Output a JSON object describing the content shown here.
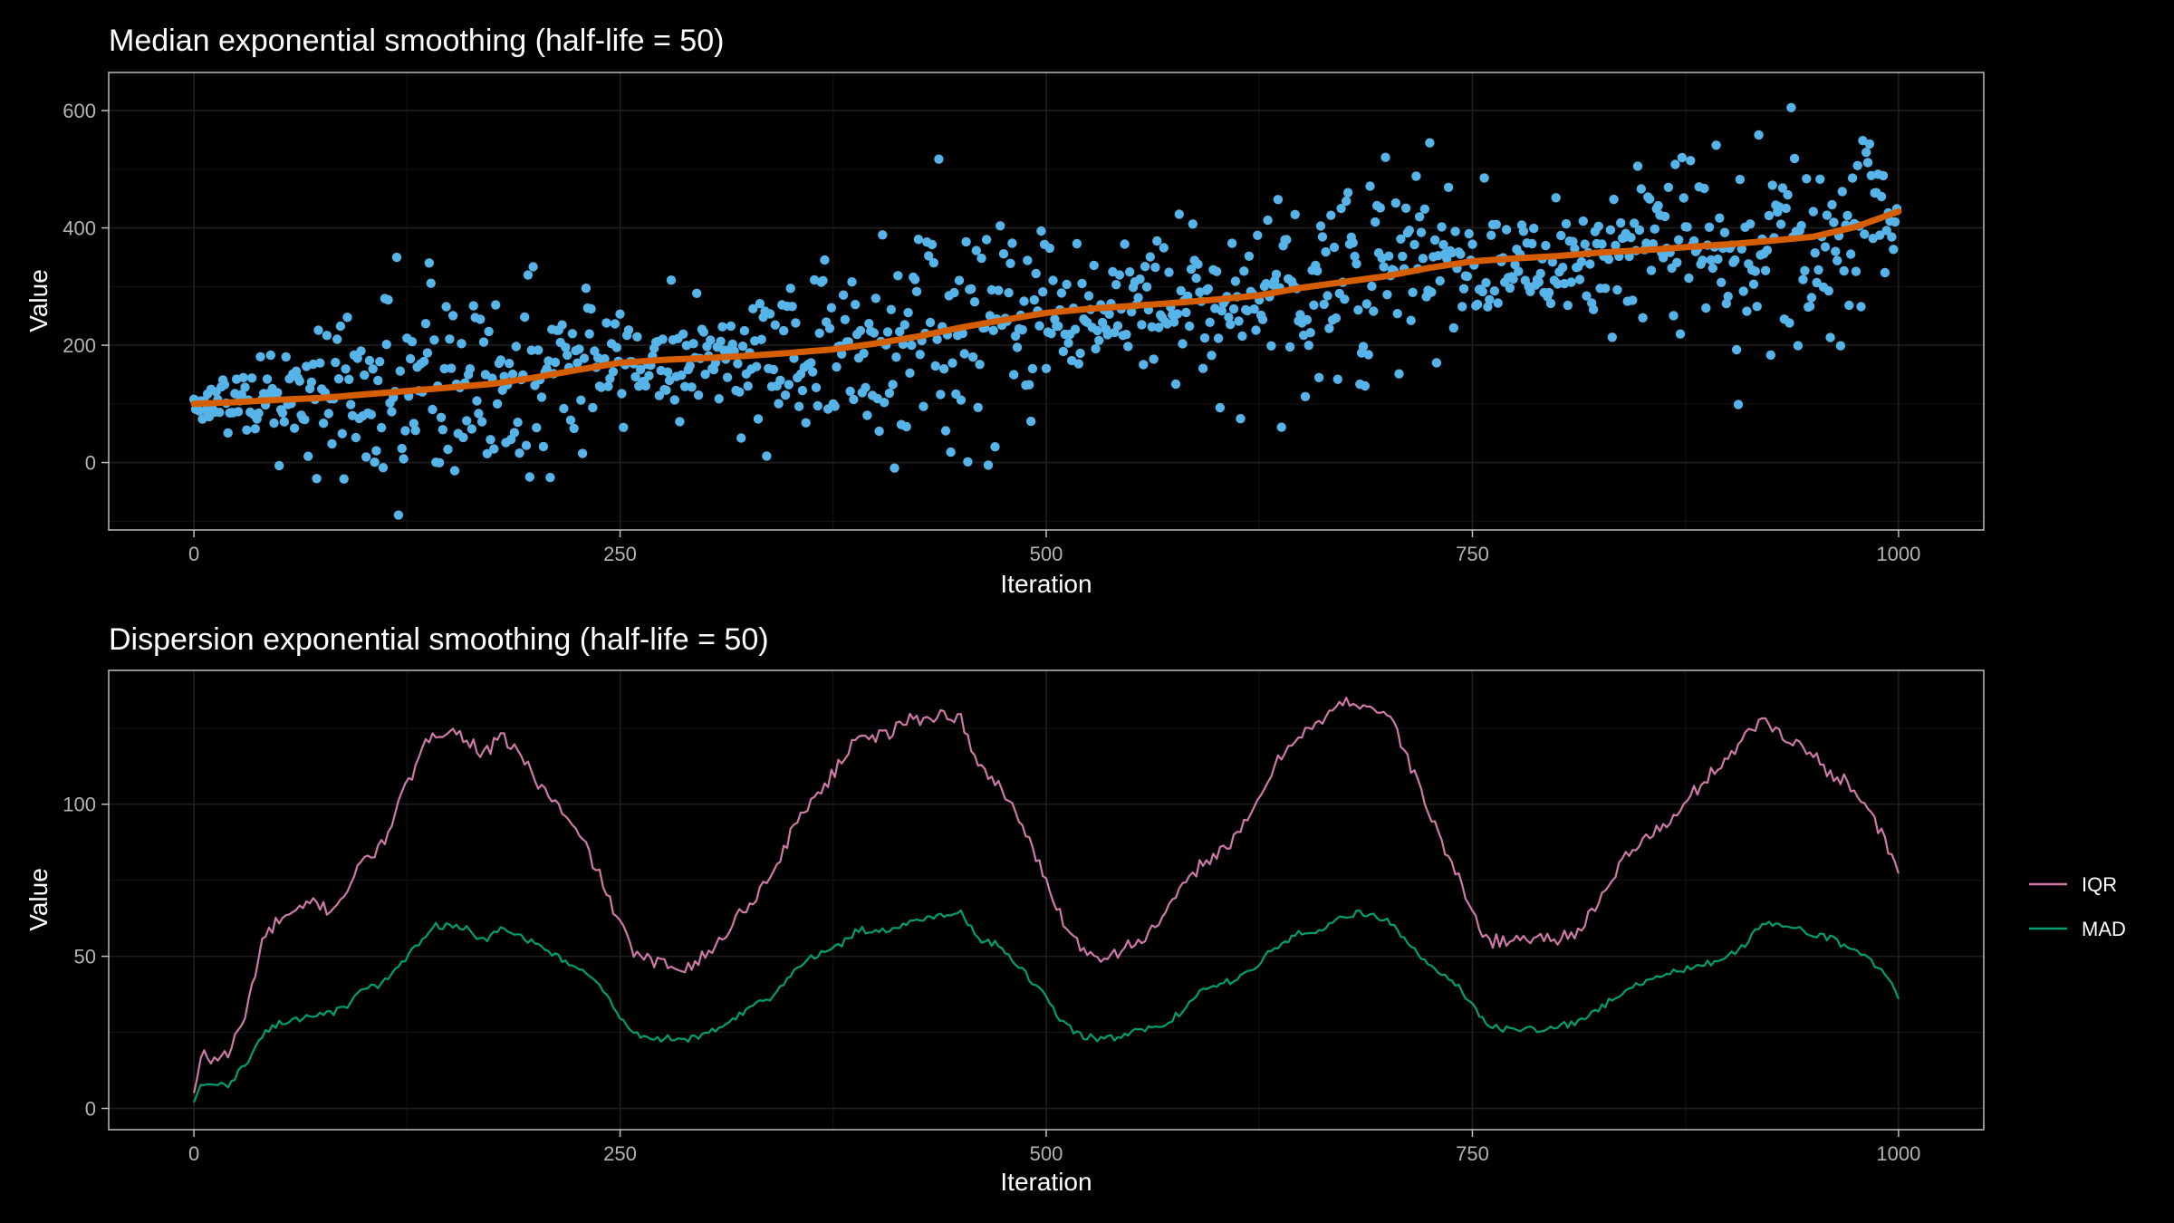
{
  "colors": {
    "background": "#000000",
    "points": "#56B4E9",
    "median_line": "#D55E00",
    "IQR": "#CC79A7",
    "MAD": "#009E73"
  },
  "chart_data": [
    {
      "type": "scatter",
      "title": "Median exponential smoothing (half-life = 50)",
      "xlabel": "Iteration",
      "ylabel": "Value",
      "xlim": [
        -50,
        1050
      ],
      "ylim": [
        -115,
        665
      ],
      "x_ticks": [
        0,
        250,
        500,
        750,
        1000
      ],
      "x_tick_labels": [
        "0",
        "250",
        "500",
        "750",
        "1000"
      ],
      "y_ticks": [
        0,
        200,
        400,
        600
      ],
      "y_tick_labels": [
        "0",
        "200",
        "400",
        "600"
      ],
      "grid": true,
      "series": [
        {
          "kind": "points",
          "color": "#56B4E9",
          "n": 1000,
          "description": "raw values, median drifting from ~100 to ~430, dispersion cycling",
          "median_path": [
            [
              0,
              100
            ],
            [
              50,
              108
            ],
            [
              100,
              118
            ],
            [
              150,
              130
            ],
            [
              200,
              148
            ],
            [
              250,
              172
            ],
            [
              300,
              180
            ],
            [
              350,
              188
            ],
            [
              400,
              205
            ],
            [
              450,
              232
            ],
            [
              500,
              255
            ],
            [
              550,
              268
            ],
            [
              600,
              278
            ],
            [
              650,
              300
            ],
            [
              700,
              322
            ],
            [
              750,
              345
            ],
            [
              800,
              352
            ],
            [
              850,
              362
            ],
            [
              900,
              372
            ],
            [
              950,
              385
            ],
            [
              1000,
              428
            ]
          ],
          "iqr_path": [
            [
              0,
              10
            ],
            [
              40,
              60
            ],
            [
              80,
              70
            ],
            [
              140,
              125
            ],
            [
              200,
              110
            ],
            [
              250,
              55
            ],
            [
              290,
              47
            ],
            [
              340,
              75
            ],
            [
              380,
              115
            ],
            [
              450,
              130
            ],
            [
              500,
              85
            ],
            [
              530,
              50
            ],
            [
              580,
              70
            ],
            [
              640,
              115
            ],
            [
              690,
              135
            ],
            [
              760,
              55
            ],
            [
              830,
              65
            ],
            [
              880,
              100
            ],
            [
              920,
              130
            ],
            [
              1000,
              77
            ]
          ]
        },
        {
          "kind": "line",
          "name": "smoothed median",
          "color": "#D55E00",
          "x": [
            0,
            25,
            50,
            75,
            100,
            125,
            150,
            175,
            200,
            225,
            250,
            275,
            300,
            325,
            350,
            375,
            400,
            425,
            450,
            475,
            500,
            525,
            550,
            575,
            600,
            625,
            650,
            675,
            700,
            725,
            750,
            775,
            800,
            825,
            850,
            875,
            900,
            925,
            950,
            975,
            1000
          ],
          "y": [
            100,
            103,
            107,
            110,
            116,
            122,
            128,
            134,
            145,
            158,
            170,
            175,
            178,
            182,
            187,
            193,
            203,
            215,
            230,
            243,
            255,
            262,
            267,
            272,
            278,
            285,
            298,
            308,
            318,
            332,
            343,
            348,
            352,
            358,
            362,
            367,
            372,
            378,
            385,
            402,
            428
          ]
        }
      ]
    },
    {
      "type": "line",
      "title": "Dispersion exponential smoothing (half-life = 50)",
      "xlabel": "Iteration",
      "ylabel": "Value",
      "xlim": [
        -50,
        1050
      ],
      "ylim": [
        -7,
        144
      ],
      "x_ticks": [
        0,
        250,
        500,
        750,
        1000
      ],
      "x_tick_labels": [
        "0",
        "250",
        "500",
        "750",
        "1000"
      ],
      "y_ticks": [
        0,
        50,
        100
      ],
      "y_tick_labels": [
        "0",
        "50",
        "100"
      ],
      "grid": true,
      "legend": "right",
      "series": [
        {
          "name": "IQR",
          "color": "#CC79A7",
          "x": [
            0,
            5,
            10,
            20,
            30,
            40,
            50,
            60,
            70,
            80,
            90,
            100,
            110,
            120,
            130,
            140,
            150,
            160,
            170,
            180,
            190,
            200,
            210,
            220,
            230,
            240,
            250,
            260,
            270,
            280,
            290,
            300,
            310,
            320,
            330,
            340,
            350,
            360,
            370,
            380,
            390,
            400,
            410,
            420,
            430,
            440,
            450,
            460,
            470,
            480,
            490,
            500,
            510,
            520,
            530,
            540,
            550,
            560,
            570,
            580,
            590,
            600,
            610,
            620,
            630,
            640,
            650,
            660,
            670,
            680,
            690,
            700,
            710,
            720,
            730,
            740,
            750,
            760,
            770,
            780,
            790,
            800,
            810,
            820,
            830,
            840,
            850,
            860,
            870,
            880,
            890,
            900,
            910,
            920,
            930,
            940,
            950,
            960,
            970,
            980,
            990,
            1000
          ],
          "y": [
            5,
            18,
            16,
            18,
            30,
            55,
            62,
            64,
            68,
            65,
            72,
            82,
            86,
            100,
            112,
            124,
            124,
            122,
            116,
            122,
            118,
            108,
            102,
            94,
            86,
            74,
            60,
            50,
            48,
            47,
            47,
            50,
            56,
            64,
            70,
            78,
            90,
            100,
            106,
            114,
            124,
            122,
            124,
            128,
            128,
            130,
            128,
            112,
            108,
            100,
            88,
            74,
            62,
            53,
            50,
            51,
            54,
            57,
            64,
            72,
            80,
            84,
            88,
            96,
            108,
            118,
            124,
            126,
            132,
            134,
            132,
            130,
            118,
            104,
            90,
            78,
            64,
            55,
            55,
            56,
            56,
            56,
            58,
            64,
            72,
            84,
            88,
            92,
            96,
            104,
            110,
            116,
            122,
            128,
            124,
            120,
            116,
            110,
            108,
            100,
            90,
            77
          ]
        },
        {
          "name": "MAD",
          "color": "#009E73",
          "x": [
            0,
            5,
            10,
            20,
            30,
            40,
            50,
            60,
            70,
            80,
            90,
            100,
            110,
            120,
            130,
            140,
            150,
            160,
            170,
            180,
            190,
            200,
            210,
            220,
            230,
            240,
            250,
            260,
            270,
            280,
            290,
            300,
            310,
            320,
            330,
            340,
            350,
            360,
            370,
            380,
            390,
            400,
            410,
            420,
            430,
            440,
            450,
            460,
            470,
            480,
            490,
            500,
            510,
            520,
            530,
            540,
            550,
            560,
            570,
            580,
            590,
            600,
            610,
            620,
            630,
            640,
            650,
            660,
            670,
            680,
            690,
            700,
            710,
            720,
            730,
            740,
            750,
            760,
            770,
            780,
            790,
            800,
            810,
            820,
            830,
            840,
            850,
            860,
            870,
            880,
            890,
            900,
            910,
            920,
            930,
            940,
            950,
            960,
            970,
            980,
            990,
            1000
          ],
          "y": [
            2,
            9,
            7,
            8,
            14,
            24,
            28,
            29,
            31,
            31,
            34,
            39,
            41,
            46,
            53,
            60,
            60,
            59,
            55,
            59,
            57,
            54,
            51,
            48,
            44,
            39,
            30,
            24,
            23,
            23,
            23,
            24,
            27,
            31,
            34,
            37,
            44,
            49,
            52,
            54,
            59,
            58,
            59,
            61,
            62,
            64,
            64,
            56,
            54,
            49,
            43,
            36,
            28,
            24,
            23,
            23,
            25,
            26,
            28,
            32,
            38,
            41,
            42,
            45,
            51,
            55,
            58,
            58,
            63,
            64,
            64,
            62,
            56,
            50,
            45,
            41,
            34,
            27,
            26,
            26,
            26,
            27,
            28,
            31,
            35,
            39,
            41,
            43,
            45,
            47,
            48,
            50,
            54,
            61,
            60,
            59,
            57,
            56,
            53,
            51,
            45,
            37
          ]
        }
      ]
    }
  ]
}
